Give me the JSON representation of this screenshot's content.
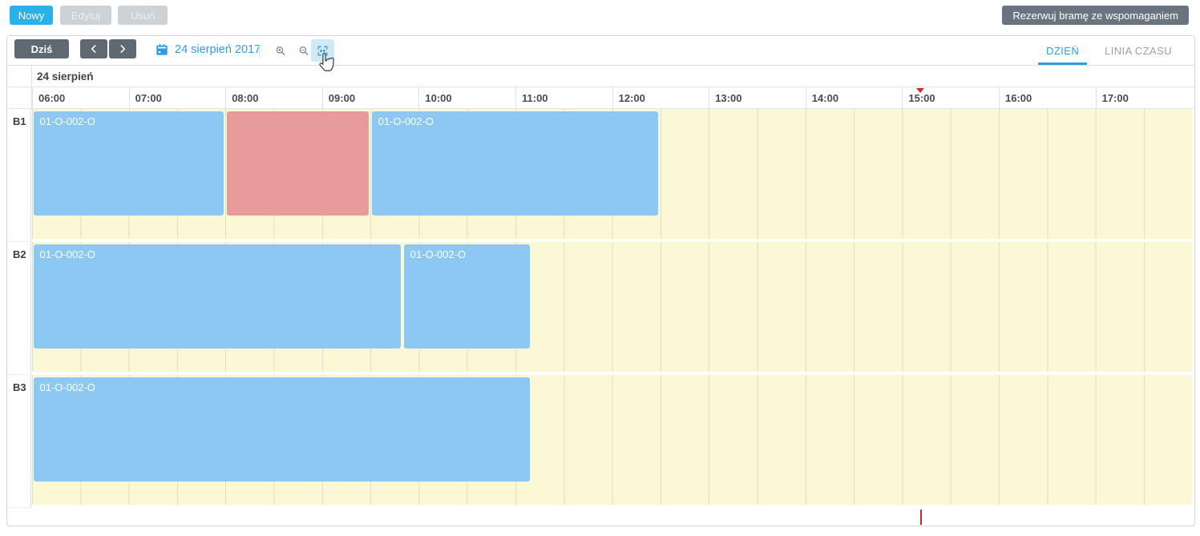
{
  "toolbar_top": {
    "new_label": "Nowy",
    "edit_label": "Edytuj",
    "delete_label": "Usuń",
    "assist_label": "Rezerwuj bramę ze wspomaganiem"
  },
  "toolbar_scheduler": {
    "today_label": "Dziś",
    "date_value": "24 sierpień 2017",
    "tabs": [
      {
        "label": "DZIEŃ",
        "active": true
      },
      {
        "label": "LINIA CZASU",
        "active": false
      }
    ]
  },
  "scheduler": {
    "date_label": "24 sierpień",
    "hours": [
      "06:00",
      "07:00",
      "08:00",
      "09:00",
      "10:00",
      "11:00",
      "12:00",
      "13:00",
      "14:00",
      "15:00",
      "16:00",
      "17:00"
    ],
    "now_time": "15:11",
    "rows": [
      {
        "label": "B1",
        "events": [
          {
            "title": "01-O-002-O",
            "start": "06:00",
            "end": "08:00",
            "color": "event_blue"
          },
          {
            "title": "",
            "start": "08:00",
            "end": "09:30",
            "color": "event_red"
          },
          {
            "title": "01-O-002-O",
            "start": "09:30",
            "end": "12:30",
            "color": "event_blue"
          }
        ]
      },
      {
        "label": "B2",
        "events": [
          {
            "title": "01-O-002-O",
            "start": "06:00",
            "end": "09:50",
            "color": "event_blue"
          },
          {
            "title": "01-O-002-O",
            "start": "09:50",
            "end": "11:10",
            "color": "event_blue"
          }
        ]
      },
      {
        "label": "B3",
        "events": [
          {
            "title": "01-O-002-O",
            "start": "06:00",
            "end": "11:10",
            "color": "event_blue"
          }
        ]
      }
    ]
  },
  "colors": {
    "accent_blue": "#2d9fdf",
    "primary_button": "#29b2ea",
    "disabled_button_bg": "#cdd2d7",
    "disabled_button_text": "#ecf0f2",
    "dark_button": "#5e6973",
    "assist_button": "#6a7480",
    "fit_button_bg": "#cfe9f7",
    "event_blue": "#8cc8f2",
    "event_red": "#e89b9b",
    "grid_yellow": "#fcf7d4",
    "now_marker": "#cc2b2b",
    "tab_inactive": "#9aa0a6",
    "icon_slate": "#5f7182"
  }
}
